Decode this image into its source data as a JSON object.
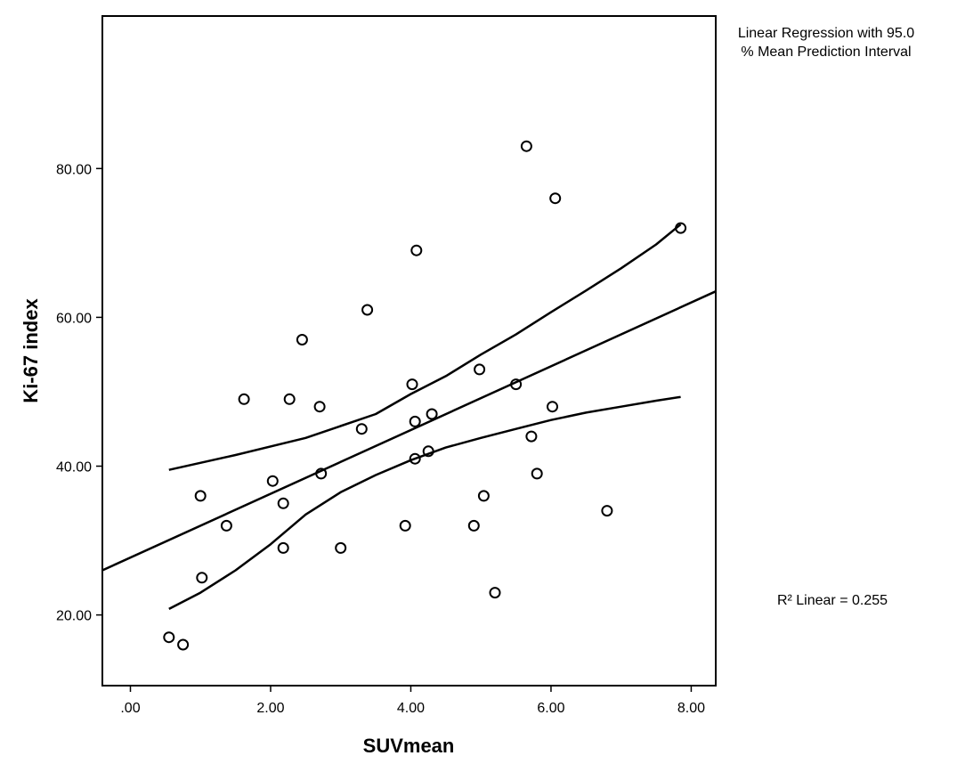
{
  "chart_data": {
    "type": "scatter",
    "xlabel": "SUVmean",
    "ylabel": "Ki-67 index",
    "xlim": [
      -0.4,
      8.35
    ],
    "ylim": [
      10.5,
      100.5
    ],
    "x_ticks": [
      0,
      2,
      4,
      6,
      8
    ],
    "x_tick_labels": [
      ".00",
      "2.00",
      "4.00",
      "6.00",
      "8.00"
    ],
    "y_ticks": [
      20,
      40,
      60,
      80
    ],
    "y_tick_labels": [
      "20.00",
      "40.00",
      "60.00",
      "80.00"
    ],
    "grid": false,
    "legend": {
      "lines": [
        "Linear Regression with 95.0",
        "% Mean Prediction Interval"
      ],
      "placement": "top-right"
    },
    "r2_text": "R² Linear = 0.255",
    "points": [
      {
        "x": 0.55,
        "y": 17
      },
      {
        "x": 0.75,
        "y": 16
      },
      {
        "x": 1.0,
        "y": 36
      },
      {
        "x": 1.02,
        "y": 25
      },
      {
        "x": 1.37,
        "y": 32
      },
      {
        "x": 1.62,
        "y": 49
      },
      {
        "x": 2.03,
        "y": 38
      },
      {
        "x": 2.18,
        "y": 35
      },
      {
        "x": 2.18,
        "y": 29
      },
      {
        "x": 2.27,
        "y": 49
      },
      {
        "x": 2.45,
        "y": 57
      },
      {
        "x": 2.7,
        "y": 48
      },
      {
        "x": 2.72,
        "y": 39
      },
      {
        "x": 3.0,
        "y": 29
      },
      {
        "x": 3.3,
        "y": 45
      },
      {
        "x": 3.38,
        "y": 61
      },
      {
        "x": 3.92,
        "y": 32
      },
      {
        "x": 4.02,
        "y": 51
      },
      {
        "x": 4.06,
        "y": 46
      },
      {
        "x": 4.06,
        "y": 41
      },
      {
        "x": 4.08,
        "y": 69
      },
      {
        "x": 4.25,
        "y": 42
      },
      {
        "x": 4.3,
        "y": 47
      },
      {
        "x": 4.9,
        "y": 32
      },
      {
        "x": 4.98,
        "y": 53
      },
      {
        "x": 5.04,
        "y": 36
      },
      {
        "x": 5.2,
        "y": 23
      },
      {
        "x": 5.5,
        "y": 51
      },
      {
        "x": 5.65,
        "y": 83
      },
      {
        "x": 5.72,
        "y": 44
      },
      {
        "x": 5.8,
        "y": 39
      },
      {
        "x": 6.02,
        "y": 48
      },
      {
        "x": 6.06,
        "y": 76
      },
      {
        "x": 6.8,
        "y": 34
      },
      {
        "x": 7.85,
        "y": 72
      }
    ],
    "regression_line": {
      "x": [
        -0.4,
        8.35
      ],
      "y": [
        26,
        63.5
      ]
    },
    "upper_interval": {
      "x": [
        0.55,
        1.5,
        2.5,
        3.5,
        4.0,
        4.5,
        5.0,
        5.5,
        6.0,
        6.5,
        7.0,
        7.5,
        7.85
      ],
      "y": [
        39.5,
        41.5,
        43.8,
        47.0,
        49.7,
        52.1,
        55.0,
        57.7,
        60.7,
        63.6,
        66.6,
        69.8,
        72.5
      ]
    },
    "lower_interval": {
      "x": [
        0.55,
        1.0,
        1.5,
        2.0,
        2.5,
        3.0,
        3.5,
        4.0,
        4.5,
        5.0,
        5.5,
        6.0,
        6.5,
        7.0,
        7.5,
        7.85
      ],
      "y": [
        20.8,
        23.0,
        26.0,
        29.5,
        33.5,
        36.5,
        38.8,
        40.8,
        42.5,
        43.8,
        45.0,
        46.2,
        47.2,
        48.0,
        48.8,
        49.3
      ]
    }
  }
}
